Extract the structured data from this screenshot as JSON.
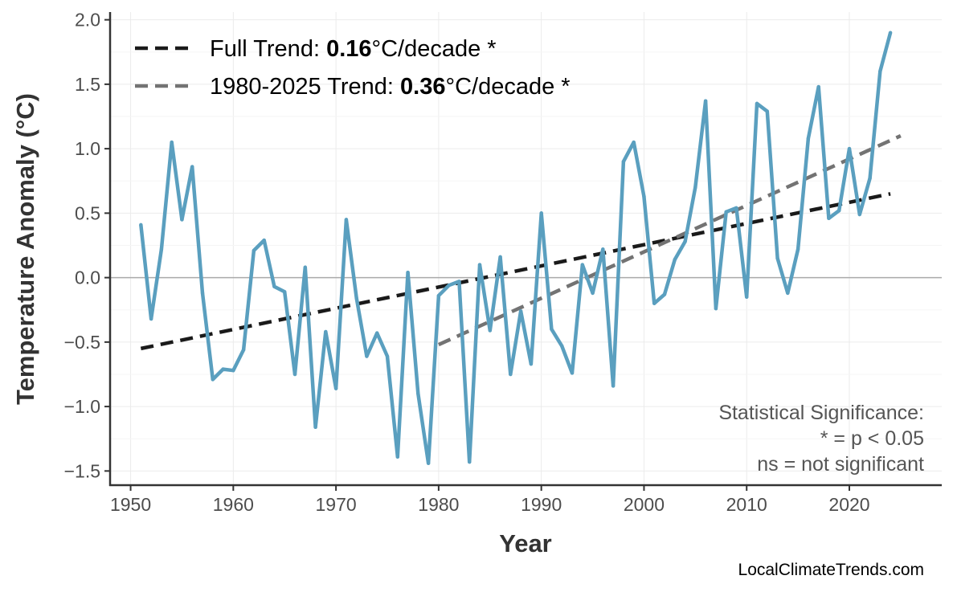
{
  "chart_data": {
    "type": "line",
    "xlabel": "Year",
    "ylabel": "Temperature Anomaly (°C)",
    "xlim": [
      1948,
      2029
    ],
    "ylim": [
      -1.61,
      2.06
    ],
    "xticks": [
      1950,
      1960,
      1970,
      1980,
      1990,
      2000,
      2010,
      2020
    ],
    "yticks": [
      -1.5,
      -1.0,
      -0.5,
      0.0,
      0.5,
      1.0,
      1.5,
      2.0
    ],
    "ytick_labels": [
      "−1.5",
      "−1.0",
      "−0.5",
      "0.0",
      "0.5",
      "1.0",
      "1.5",
      "2.0"
    ],
    "grid": true,
    "series": [
      {
        "color": "#5a9fbf",
        "x": [
          1951,
          1952,
          1953,
          1954,
          1955,
          1956,
          1957,
          1958,
          1959,
          1960,
          1961,
          1962,
          1963,
          1964,
          1965,
          1966,
          1967,
          1968,
          1969,
          1970,
          1971,
          1972,
          1973,
          1974,
          1975,
          1976,
          1977,
          1978,
          1979,
          1980,
          1981,
          1982,
          1983,
          1984,
          1985,
          1986,
          1987,
          1988,
          1989,
          1990,
          1991,
          1992,
          1993,
          1994,
          1995,
          1996,
          1997,
          1998,
          1999,
          2000,
          2001,
          2002,
          2003,
          2004,
          2005,
          2006,
          2007,
          2008,
          2009,
          2010,
          2011,
          2012,
          2013,
          2014,
          2015,
          2016,
          2017,
          2018,
          2019,
          2020,
          2021,
          2022,
          2023,
          2024
        ],
        "y": [
          0.41,
          -0.32,
          0.22,
          1.05,
          0.45,
          0.86,
          -0.12,
          -0.79,
          -0.71,
          -0.72,
          -0.56,
          0.21,
          0.29,
          -0.07,
          -0.11,
          -0.75,
          0.08,
          -1.16,
          -0.42,
          -0.86,
          0.45,
          -0.16,
          -0.61,
          -0.43,
          -0.61,
          -1.39,
          0.04,
          -0.9,
          -1.44,
          -0.14,
          -0.06,
          -0.03,
          -1.43,
          0.1,
          -0.41,
          0.16,
          -0.75,
          -0.26,
          -0.67,
          0.5,
          -0.4,
          -0.53,
          -0.74,
          0.1,
          -0.12,
          0.22,
          -0.84,
          0.9,
          1.05,
          0.63,
          -0.2,
          -0.13,
          0.14,
          0.28,
          0.7,
          1.37,
          -0.24,
          0.51,
          0.54,
          -0.15,
          1.35,
          1.29,
          0.15,
          -0.12,
          0.22,
          1.08,
          1.48,
          0.46,
          0.52,
          1.0,
          0.49,
          0.77,
          1.6,
          1.9
        ]
      }
    ],
    "trends": [
      {
        "label_prefix": "Full Trend: ",
        "value": "0.16",
        "label_suffix": "°C/decade *",
        "color": "#1a1a1a",
        "x": [
          1951,
          2024
        ],
        "y": [
          -0.55,
          0.65
        ]
      },
      {
        "label_prefix": "1980-2025 Trend: ",
        "value": "0.36",
        "label_suffix": "°C/decade *",
        "color": "#737373",
        "x": [
          1980,
          2025
        ],
        "y": [
          -0.52,
          1.1
        ]
      }
    ],
    "legend_position": "top-left",
    "annotation": [
      "Statistical Significance:",
      "* = p < 0.05",
      "ns = not significant"
    ],
    "credit": "LocalClimateTrends.com"
  }
}
